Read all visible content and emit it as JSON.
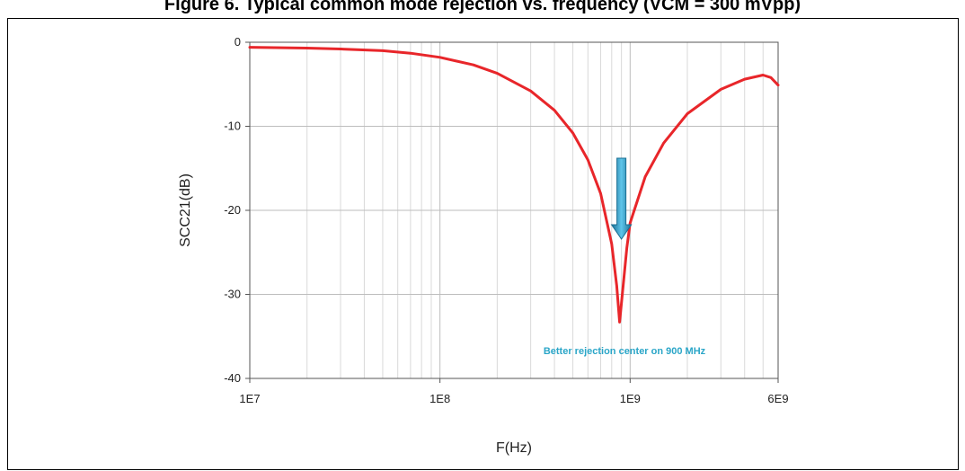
{
  "figure_title": "Figure 6. Typical common mode rejection vs. frequency (VCM = 300 mVpp)",
  "chart_data": {
    "type": "line",
    "title": "",
    "xlabel": "F(Hz)",
    "ylabel": "SCC21(dB)",
    "x_scale": "log",
    "xlim": [
      10000000,
      6000000000
    ],
    "ylim": [
      -40,
      0
    ],
    "x_tick_labels": [
      "1E7",
      "1E8",
      "1E9",
      "6E9"
    ],
    "y_tick_labels": [
      "0",
      "-10",
      "-20",
      "-30",
      "-40"
    ],
    "grid": true,
    "series": [
      {
        "name": "",
        "color": "#e8262a",
        "points": [
          [
            10000000,
            -0.6
          ],
          [
            20000000,
            -0.7
          ],
          [
            30000000,
            -0.8
          ],
          [
            50000000,
            -1.0
          ],
          [
            70000000,
            -1.3
          ],
          [
            100000000,
            -1.8
          ],
          [
            150000000,
            -2.7
          ],
          [
            200000000,
            -3.7
          ],
          [
            300000000,
            -5.8
          ],
          [
            400000000,
            -8.1
          ],
          [
            500000000,
            -10.8
          ],
          [
            600000000,
            -14.0
          ],
          [
            700000000,
            -18.0
          ],
          [
            800000000,
            -24.0
          ],
          [
            850000000,
            -29.0
          ],
          [
            880000000,
            -33.3
          ],
          [
            910000000,
            -30.0
          ],
          [
            960000000,
            -24.5
          ],
          [
            1000000000,
            -21.5
          ],
          [
            1200000000,
            -16.0
          ],
          [
            1500000000,
            -12.0
          ],
          [
            2000000000,
            -8.5
          ],
          [
            3000000000,
            -5.6
          ],
          [
            4000000000,
            -4.4
          ],
          [
            5000000000,
            -3.9
          ],
          [
            5500000000,
            -4.2
          ],
          [
            6000000000,
            -5.1
          ]
        ]
      }
    ],
    "annotations": [
      {
        "text": "Better rejection center on 900 MHz",
        "color": "#2ba6c8",
        "arrow": "down",
        "x": 900000000
      }
    ]
  }
}
